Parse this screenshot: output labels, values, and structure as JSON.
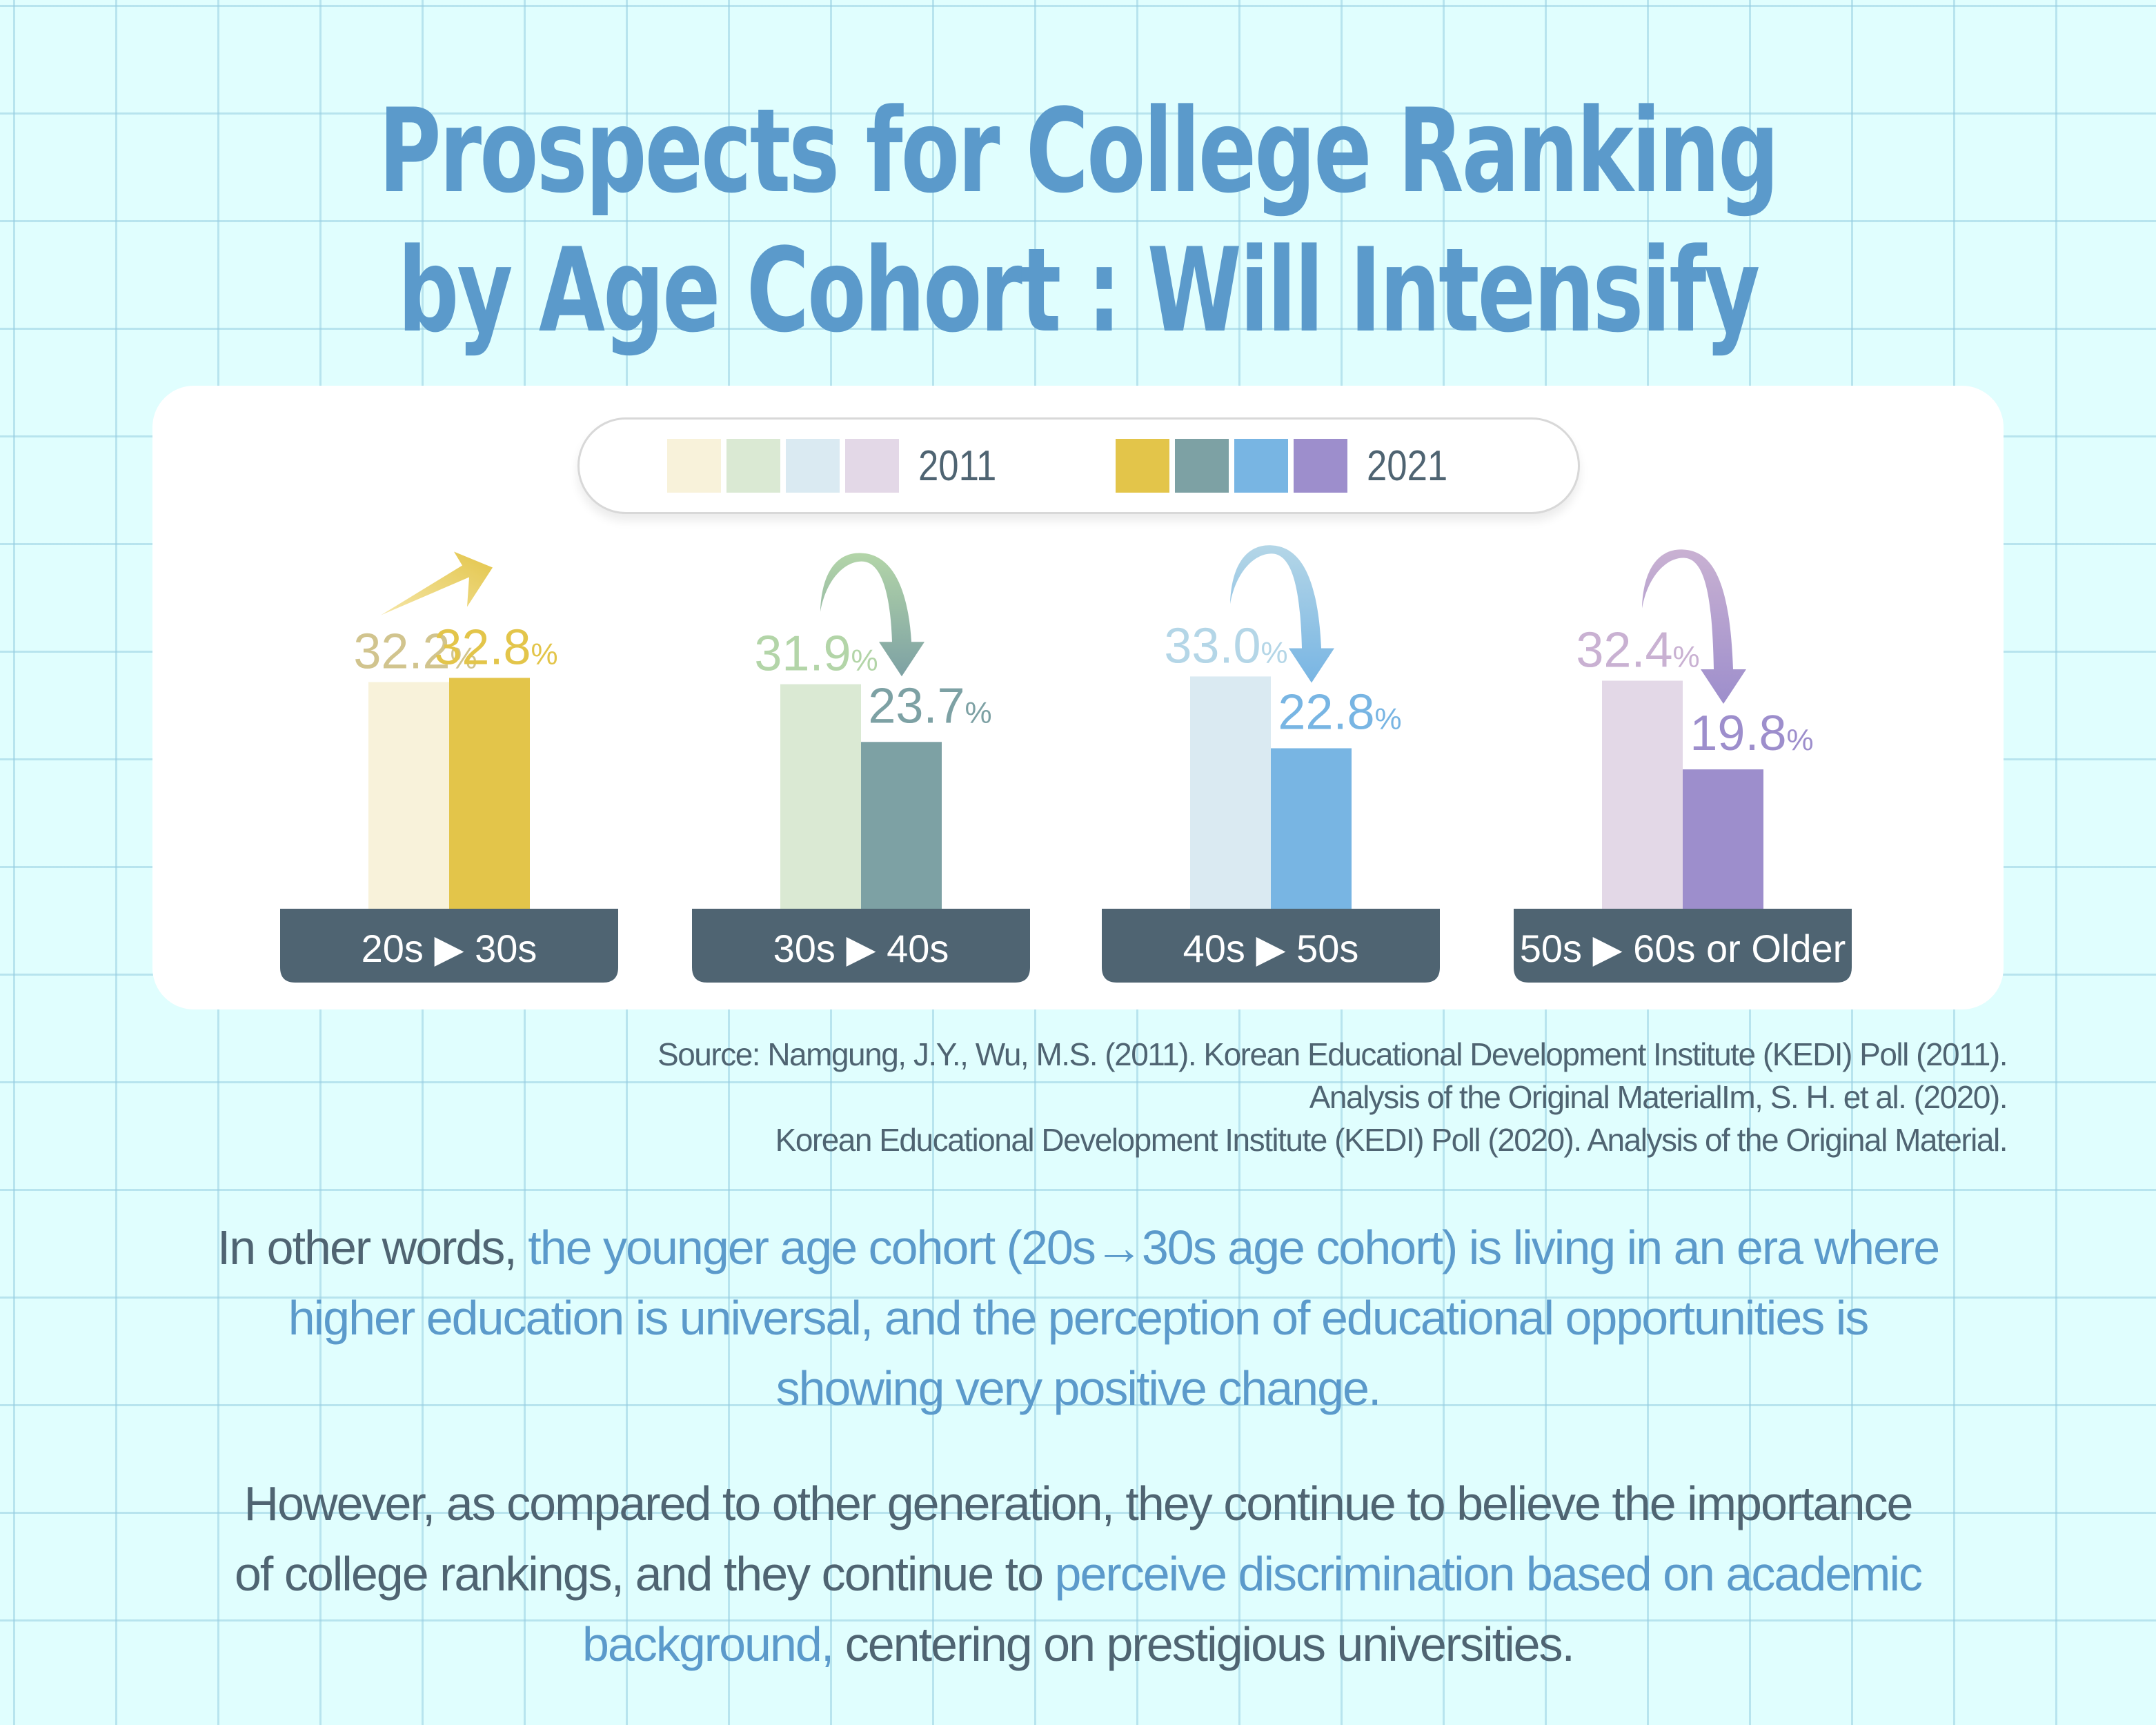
{
  "title": {
    "line1": "Prospects for College Ranking",
    "line2": "by Age Cohort : Will Intensify"
  },
  "colors": {
    "background": "#E0FEFE",
    "title": "#5B9ACB",
    "highlight": "#5B9ACB",
    "body_text": "#4F6472",
    "category_box": "#4F6472"
  },
  "legend": {
    "groups": [
      {
        "label": "2011",
        "swatches": [
          "#F8F2DA",
          "#DAE9D3",
          "#DAEAF2",
          "#E3D8E7"
        ]
      },
      {
        "label": "2021",
        "swatches": [
          "#E3C54A",
          "#7DA1A4",
          "#78B5E3",
          "#9D8ECC"
        ]
      }
    ]
  },
  "chart_data": {
    "type": "bar",
    "title": "Prospects for College Ranking by Age Cohort : Will Intensify",
    "xlabel": "",
    "ylabel": "",
    "ylim": [
      0,
      40
    ],
    "grid": false,
    "legend_position": "top-center",
    "categories": [
      "20s ▶ 30s",
      "30s ▶ 40s",
      "40s ▶ 50s",
      "50s ▶ 60s or Older"
    ],
    "series": [
      {
        "name": "2011",
        "values": [
          32.2,
          31.9,
          33.0,
          32.4
        ],
        "value_labels": [
          "32.2",
          "31.9",
          "33.0",
          "32.4"
        ],
        "colors": [
          "#F8F2DA",
          "#DAE9D3",
          "#DAEAF2",
          "#E3D8E7"
        ],
        "label_colors": [
          "#D1C48E",
          "#B3D5A8",
          "#B4D6E7",
          "#C9B1D2"
        ]
      },
      {
        "name": "2021",
        "values": [
          32.8,
          23.7,
          22.8,
          19.8
        ],
        "value_labels": [
          "32.8",
          "23.7",
          "22.8",
          "19.8"
        ],
        "colors": [
          "#E3C54A",
          "#7DA1A4",
          "#78B5E3",
          "#9D8ECC"
        ],
        "label_colors": [
          "#E3C54A",
          "#7DA1A4",
          "#78B5E3",
          "#9D8ECC"
        ]
      }
    ],
    "unit_suffix": "%",
    "trend_arrows": [
      {
        "direction": "up",
        "colors": [
          "#F5E6A8",
          "#E3C54A"
        ]
      },
      {
        "direction": "down",
        "colors": [
          "#B3D5A8",
          "#7DA1A4"
        ]
      },
      {
        "direction": "down",
        "colors": [
          "#B4D6E7",
          "#78B5E3"
        ]
      },
      {
        "direction": "down",
        "colors": [
          "#C9B1D2",
          "#9D8ECC"
        ]
      }
    ]
  },
  "source": {
    "lines": [
      "Source: Namgung, J.Y., Wu, M.S. (2011). Korean Educational Development Institute (KEDI) Poll (2011).",
      "Analysis of the Original MaterialIm, S. H. et al. (2020).",
      "Korean Educational Development Institute (KEDI) Poll (2020). Analysis of the Original Material."
    ]
  },
  "paragraphs": [
    {
      "lines": [
        [
          {
            "text": "In other words, ",
            "highlight": false
          },
          {
            "text": "the younger age cohort (20s→30s age cohort) is living in an era where",
            "highlight": true
          }
        ],
        [
          {
            "text": "higher education is universal, and the perception of educational opportunities is",
            "highlight": true
          }
        ],
        [
          {
            "text": "showing very positive change.",
            "highlight": true
          }
        ]
      ]
    },
    {
      "lines": [
        [
          {
            "text": "However, as compared to other generation, they continue to believe the importance",
            "highlight": false
          }
        ],
        [
          {
            "text": "of college rankings, and they continue to ",
            "highlight": false
          },
          {
            "text": "perceive discrimination based on academic",
            "highlight": true
          }
        ],
        [
          {
            "text": "background,",
            "highlight": true
          },
          {
            "text": " centering on prestigious universities.",
            "highlight": false
          }
        ]
      ]
    }
  ]
}
